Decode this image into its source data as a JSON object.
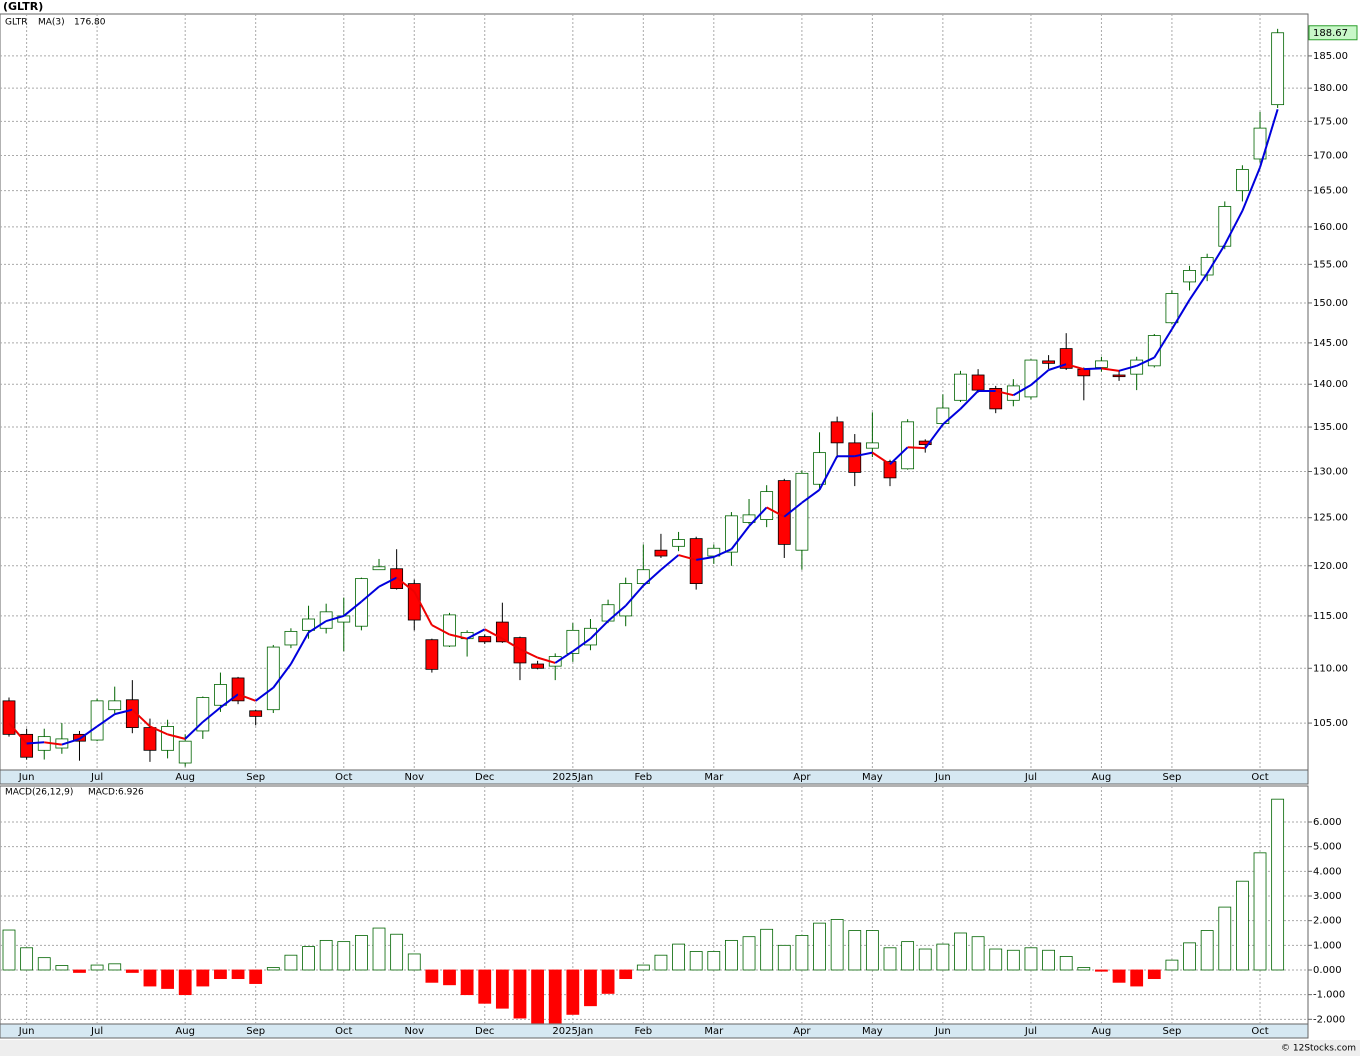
{
  "chart_data": [
    {
      "type": "candlestick",
      "title": "(GLTR)",
      "symbol": "GLTR",
      "log_scale": true,
      "grid": true,
      "up_color": "#006400",
      "down_color": "#ff0000",
      "up_fill": "#ffffff",
      "categories": [
        null,
        "Jun",
        null,
        null,
        null,
        "Jul",
        null,
        null,
        null,
        null,
        "Aug",
        null,
        null,
        null,
        "Sep",
        null,
        null,
        null,
        null,
        "Oct",
        null,
        null,
        null,
        "Nov",
        null,
        null,
        null,
        "Dec",
        null,
        null,
        null,
        null,
        "2025Jan",
        null,
        null,
        null,
        "Feb",
        null,
        null,
        null,
        "Mar",
        null,
        null,
        null,
        null,
        "Apr",
        null,
        null,
        null,
        "May",
        null,
        null,
        null,
        "Jun",
        null,
        null,
        null,
        null,
        "Jul",
        null,
        null,
        null,
        "Aug",
        null,
        null,
        null,
        "Sep",
        null,
        null,
        null,
        null,
        "Oct",
        null
      ],
      "open": [
        107,
        104,
        102.6,
        102.8,
        104,
        103.5,
        106.2,
        107.1,
        104.6,
        102.6,
        101.5,
        104.3,
        106.6,
        109.1,
        106.1,
        106.2,
        112.2,
        113.6,
        113.8,
        114.4,
        114,
        119.6,
        119.7,
        118.2,
        112.7,
        112.1,
        112.8,
        113,
        114.4,
        112.9,
        110.4,
        110.2,
        111.4,
        112.2,
        114.5,
        115,
        118.2,
        121.6,
        122,
        122.8,
        121,
        121.4,
        124.5,
        124.8,
        129,
        121.6,
        128.6,
        135.6,
        133.2,
        132.6,
        131.1,
        130.3,
        133.4,
        135.4,
        138.1,
        141.1,
        139.5,
        138.1,
        138.5,
        142.8,
        144.3,
        141.8,
        142,
        141.1,
        141.2,
        142.2,
        147.5,
        152.7,
        153.6,
        157.4,
        165,
        169.5,
        177.5
      ],
      "high": [
        107.3,
        104.5,
        104.5,
        105,
        104.3,
        107.2,
        108.3,
        108.9,
        105.4,
        105.3,
        104,
        107.4,
        109.6,
        109.2,
        106.2,
        112.2,
        113.8,
        116,
        116.2,
        116.8,
        118.8,
        120.7,
        121.7,
        118.6,
        112.8,
        115.3,
        113.6,
        113.2,
        116.3,
        113,
        110.7,
        111.4,
        114.3,
        114.7,
        116.6,
        118.8,
        122.2,
        123.3,
        123.5,
        123,
        122.2,
        125.6,
        127,
        128.5,
        129.2,
        130.1,
        134.4,
        136.2,
        134.2,
        136.7,
        131.3,
        135.9,
        133.6,
        138.8,
        141.6,
        141.8,
        139.8,
        140.6,
        143,
        143.5,
        146.2,
        142,
        143.3,
        141.6,
        143.3,
        146.1,
        151.6,
        154.8,
        156.4,
        163.5,
        168.6,
        176.4,
        189.3
      ],
      "low": [
        103.8,
        101.8,
        101.8,
        102.3,
        101.7,
        103.4,
        105.8,
        104.1,
        101.6,
        101.9,
        101.2,
        103.6,
        106,
        106.7,
        104.8,
        105.9,
        111.9,
        112.8,
        113.3,
        111.6,
        113.6,
        119.7,
        117.6,
        113.6,
        109.6,
        112,
        111.1,
        112.3,
        112.4,
        108.9,
        109.9,
        108.9,
        110.6,
        111.7,
        114.3,
        114,
        118,
        120.8,
        121.5,
        117.6,
        120.2,
        120,
        124.3,
        124,
        120.8,
        119.6,
        128,
        131.5,
        128.4,
        131.6,
        128.4,
        130.2,
        132.1,
        135.1,
        137.9,
        139,
        136.6,
        137.4,
        138.2,
        141.8,
        141.7,
        138.1,
        141.5,
        140.4,
        139.3,
        142,
        147.3,
        151.6,
        152.8,
        157,
        163.5,
        169,
        177
      ],
      "close": [
        104,
        102,
        103.8,
        103.6,
        103.4,
        107,
        107,
        104.6,
        102.6,
        104.7,
        103.4,
        107.3,
        108.5,
        107,
        105.6,
        112,
        113.5,
        114.7,
        115.4,
        115,
        118.7,
        119.9,
        117.7,
        114.6,
        109.9,
        115.1,
        113.4,
        112.5,
        112.5,
        110.5,
        110,
        111.1,
        113.6,
        113.8,
        116.1,
        118.2,
        119.6,
        121,
        122.7,
        118.2,
        121.8,
        125.2,
        125.3,
        127.8,
        122.2,
        129.8,
        132.1,
        133.2,
        129.9,
        133.2,
        129.3,
        135.6,
        133,
        137.2,
        141.2,
        139.3,
        137.1,
        139.8,
        142.9,
        142.5,
        141.9,
        141,
        142.8,
        140.9,
        142.9,
        145.9,
        151.2,
        154.2,
        155.9,
        162.8,
        168,
        174,
        188.67
      ],
      "last_price_label": "188.67",
      "ma": {
        "name": "MA(3)",
        "up_color": "#0000dd",
        "down_color": "#ee0000",
        "last_label": "176.80",
        "values": [
          105,
          103.2,
          103.3,
          103.1,
          103.6,
          104.7,
          105.8,
          106.2,
          104.7,
          104,
          103.6,
          105.1,
          106.4,
          107.6,
          107,
          108.2,
          110.4,
          113.4,
          114.5,
          115,
          116.4,
          117.9,
          118.8,
          117.4,
          114.1,
          113.2,
          112.8,
          113.7,
          112.8,
          111.8,
          111,
          110.5,
          111.6,
          112.8,
          114.5,
          116,
          118,
          119.6,
          121.1,
          120.6,
          120.9,
          121.7,
          124.1,
          126.1,
          125.1,
          126.6,
          128,
          131.7,
          131.7,
          132.1,
          130.8,
          132.7,
          132.6,
          135.3,
          137.1,
          139.2,
          139.2,
          138.7,
          139.9,
          141.7,
          142.4,
          141.8,
          141.9,
          141.6,
          142.2,
          143.2,
          146.7,
          150.4,
          153.8,
          157.6,
          162.2,
          168.3,
          176.8
        ]
      },
      "ylim": [
        100.9,
        191.7
      ],
      "yticks": [
        {
          "value": 105,
          "label": "105.00"
        },
        {
          "value": 110,
          "label": "110.00"
        },
        {
          "value": 115,
          "label": "115.00"
        },
        {
          "value": 120,
          "label": "120.00"
        },
        {
          "value": 125,
          "label": "125.00"
        },
        {
          "value": 130,
          "label": "130.00"
        },
        {
          "value": 135,
          "label": "135.00"
        },
        {
          "value": 140,
          "label": "140.00"
        },
        {
          "value": 145,
          "label": "145.00"
        },
        {
          "value": 150,
          "label": "150.00"
        },
        {
          "value": 155,
          "label": "155.00"
        },
        {
          "value": 160,
          "label": "160.00"
        },
        {
          "value": 165,
          "label": "165.00"
        },
        {
          "value": 170,
          "label": "170.00"
        },
        {
          "value": 175,
          "label": "175.00"
        },
        {
          "value": 180,
          "label": "180.00"
        },
        {
          "value": 185,
          "label": "185.00"
        }
      ]
    },
    {
      "type": "bar",
      "title": "MACD(26,12,9)",
      "value_label": "MACD:6.926",
      "grid": true,
      "up_color": "#006400",
      "down_color": "#ff0000",
      "categories": [
        null,
        "Jun",
        null,
        null,
        null,
        "Jul",
        null,
        null,
        null,
        null,
        "Aug",
        null,
        null,
        null,
        "Sep",
        null,
        null,
        null,
        null,
        "Oct",
        null,
        null,
        null,
        "Nov",
        null,
        null,
        null,
        "Dec",
        null,
        null,
        null,
        null,
        "2025Jan",
        null,
        null,
        null,
        "Feb",
        null,
        null,
        null,
        "Mar",
        null,
        null,
        null,
        null,
        "Apr",
        null,
        null,
        null,
        "May",
        null,
        null,
        null,
        "Jun",
        null,
        null,
        null,
        null,
        "Jul",
        null,
        null,
        null,
        "Aug",
        null,
        null,
        null,
        "Sep",
        null,
        null,
        null,
        null,
        "Oct",
        null
      ],
      "values": [
        1.62,
        0.9,
        0.5,
        0.18,
        -0.1,
        0.2,
        0.25,
        -0.1,
        -0.65,
        -0.75,
        -1,
        -0.65,
        -0.35,
        -0.35,
        -0.55,
        0.1,
        0.6,
        0.95,
        1.2,
        1.15,
        1.4,
        1.7,
        1.45,
        0.65,
        -0.5,
        -0.6,
        -1,
        -1.35,
        -1.55,
        -1.95,
        -2.15,
        -2.15,
        -1.8,
        -1.45,
        -0.95,
        -0.35,
        0.2,
        0.6,
        1.05,
        0.75,
        0.75,
        1.2,
        1.35,
        1.65,
        1,
        1.4,
        1.9,
        2.05,
        1.6,
        1.6,
        0.9,
        1.15,
        0.85,
        1.05,
        1.5,
        1.35,
        0.85,
        0.8,
        0.9,
        0.8,
        0.55,
        0.1,
        -0.05,
        -0.5,
        -0.65,
        -0.35,
        0.4,
        1.1,
        1.6,
        2.55,
        3.6,
        4.75,
        6.926
      ],
      "ylim": [
        -2.19,
        7.46
      ],
      "yticks": [
        {
          "value": -2,
          "label": "-2.000"
        },
        {
          "value": -1,
          "label": "-1.000"
        },
        {
          "value": 0,
          "label": "0.000"
        },
        {
          "value": 1,
          "label": "1.000"
        },
        {
          "value": 2,
          "label": "2.000"
        },
        {
          "value": 3,
          "label": "3.000"
        },
        {
          "value": 4,
          "label": "4.000"
        },
        {
          "value": 5,
          "label": "5.000"
        },
        {
          "value": 6,
          "label": "6.000"
        }
      ]
    }
  ],
  "footer": "© 12Stocks.com"
}
